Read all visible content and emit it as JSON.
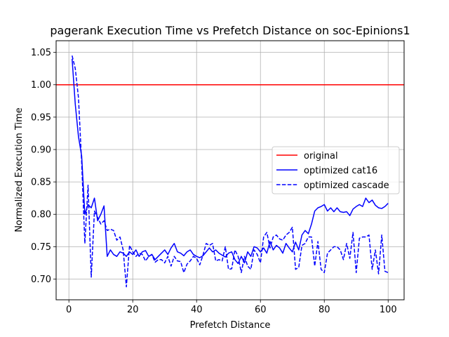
{
  "chart_data": {
    "type": "line",
    "title": "pagerank Execution Time vs Prefetch Distance on soc-Epinions1",
    "xlabel": "Prefetch Distance",
    "ylabel": "Normalized Execution Time",
    "xlim": [
      -4,
      105
    ],
    "ylim": [
      0.668,
      1.068
    ],
    "x_ticks": [
      0,
      20,
      40,
      60,
      80,
      100
    ],
    "x_tick_labels": [
      "0",
      "20",
      "40",
      "60",
      "80",
      "100"
    ],
    "y_ticks": [
      0.7,
      0.75,
      0.8,
      0.85,
      0.9,
      0.95,
      1.0,
      1.05
    ],
    "y_tick_labels": [
      "0.70",
      "0.75",
      "0.80",
      "0.85",
      "0.90",
      "0.95",
      "1.00",
      "1.05"
    ],
    "grid": true,
    "legend_position": "center-right",
    "series": [
      {
        "name": "original",
        "color": "#ff0000",
        "style": "solid",
        "x": [
          -4,
          105
        ],
        "y": [
          1.0,
          1.0
        ]
      },
      {
        "name": "optimized cat16",
        "color": "#0000ff",
        "style": "solid",
        "x": [
          1,
          2,
          3,
          4,
          5,
          6,
          7,
          8,
          9,
          10,
          11,
          12,
          13,
          14,
          15,
          16,
          17,
          18,
          19,
          20,
          21,
          22,
          23,
          24,
          25,
          26,
          27,
          28,
          29,
          30,
          31,
          32,
          33,
          34,
          35,
          36,
          37,
          38,
          39,
          40,
          41,
          42,
          43,
          44,
          45,
          46,
          47,
          48,
          49,
          50,
          51,
          52,
          53,
          54,
          55,
          56,
          57,
          58,
          59,
          60,
          61,
          62,
          63,
          64,
          65,
          66,
          67,
          68,
          69,
          70,
          71,
          72,
          73,
          74,
          75,
          76,
          77,
          78,
          79,
          80,
          81,
          82,
          83,
          84,
          85,
          86,
          87,
          88,
          89,
          90,
          91,
          92,
          93,
          94,
          95,
          96,
          97,
          98,
          99,
          100
        ],
        "y": [
          1.04,
          0.97,
          0.92,
          0.89,
          0.8,
          0.815,
          0.81,
          0.825,
          0.79,
          0.8,
          0.813,
          0.735,
          0.745,
          0.738,
          0.735,
          0.742,
          0.74,
          0.735,
          0.742,
          0.738,
          0.745,
          0.735,
          0.742,
          0.744,
          0.735,
          0.738,
          0.73,
          0.735,
          0.74,
          0.745,
          0.738,
          0.748,
          0.755,
          0.742,
          0.74,
          0.736,
          0.742,
          0.745,
          0.738,
          0.735,
          0.733,
          0.736,
          0.742,
          0.748,
          0.742,
          0.745,
          0.74,
          0.737,
          0.734,
          0.74,
          0.742,
          0.73,
          0.724,
          0.735,
          0.725,
          0.742,
          0.735,
          0.75,
          0.748,
          0.742,
          0.748,
          0.74,
          0.758,
          0.745,
          0.752,
          0.748,
          0.74,
          0.755,
          0.748,
          0.742,
          0.757,
          0.745,
          0.768,
          0.775,
          0.77,
          0.785,
          0.805,
          0.81,
          0.812,
          0.815,
          0.805,
          0.81,
          0.804,
          0.81,
          0.804,
          0.803,
          0.804,
          0.798,
          0.808,
          0.812,
          0.815,
          0.812,
          0.825,
          0.818,
          0.822,
          0.814,
          0.81,
          0.809,
          0.812,
          0.817
        ]
      },
      {
        "name": "optimized cascade",
        "color": "#0000ff",
        "style": "dashed",
        "x": [
          1,
          2,
          3,
          4,
          5,
          6,
          7,
          8,
          9,
          10,
          11,
          12,
          13,
          14,
          15,
          16,
          17,
          18,
          19,
          20,
          21,
          22,
          23,
          24,
          25,
          26,
          27,
          28,
          29,
          30,
          31,
          32,
          33,
          34,
          35,
          36,
          37,
          38,
          39,
          40,
          41,
          42,
          43,
          44,
          45,
          46,
          47,
          48,
          49,
          50,
          51,
          52,
          53,
          54,
          55,
          56,
          57,
          58,
          59,
          60,
          61,
          62,
          63,
          64,
          65,
          66,
          67,
          68,
          69,
          70,
          71,
          72,
          73,
          74,
          75,
          76,
          77,
          78,
          79,
          80,
          81,
          82,
          83,
          84,
          85,
          86,
          87,
          88,
          89,
          90,
          91,
          92,
          93,
          94,
          95,
          96,
          97,
          98,
          99,
          100
        ],
        "y": [
          1.045,
          1.025,
          0.98,
          0.88,
          0.755,
          0.845,
          0.703,
          0.805,
          0.795,
          0.785,
          0.79,
          0.775,
          0.777,
          0.775,
          0.76,
          0.765,
          0.745,
          0.688,
          0.752,
          0.742,
          0.735,
          0.74,
          0.738,
          0.728,
          0.735,
          0.738,
          0.726,
          0.73,
          0.73,
          0.725,
          0.735,
          0.72,
          0.735,
          0.728,
          0.727,
          0.71,
          0.723,
          0.728,
          0.735,
          0.732,
          0.722,
          0.737,
          0.755,
          0.752,
          0.755,
          0.728,
          0.73,
          0.728,
          0.75,
          0.715,
          0.716,
          0.745,
          0.735,
          0.71,
          0.735,
          0.72,
          0.715,
          0.745,
          0.738,
          0.725,
          0.765,
          0.772,
          0.748,
          0.765,
          0.768,
          0.762,
          0.76,
          0.768,
          0.772,
          0.78,
          0.715,
          0.718,
          0.752,
          0.755,
          0.765,
          0.765,
          0.72,
          0.758,
          0.715,
          0.71,
          0.74,
          0.745,
          0.75,
          0.75,
          0.745,
          0.73,
          0.755,
          0.732,
          0.772,
          0.71,
          0.763,
          0.765,
          0.765,
          0.768,
          0.715,
          0.745,
          0.708,
          0.768,
          0.712,
          0.71
        ]
      }
    ]
  }
}
